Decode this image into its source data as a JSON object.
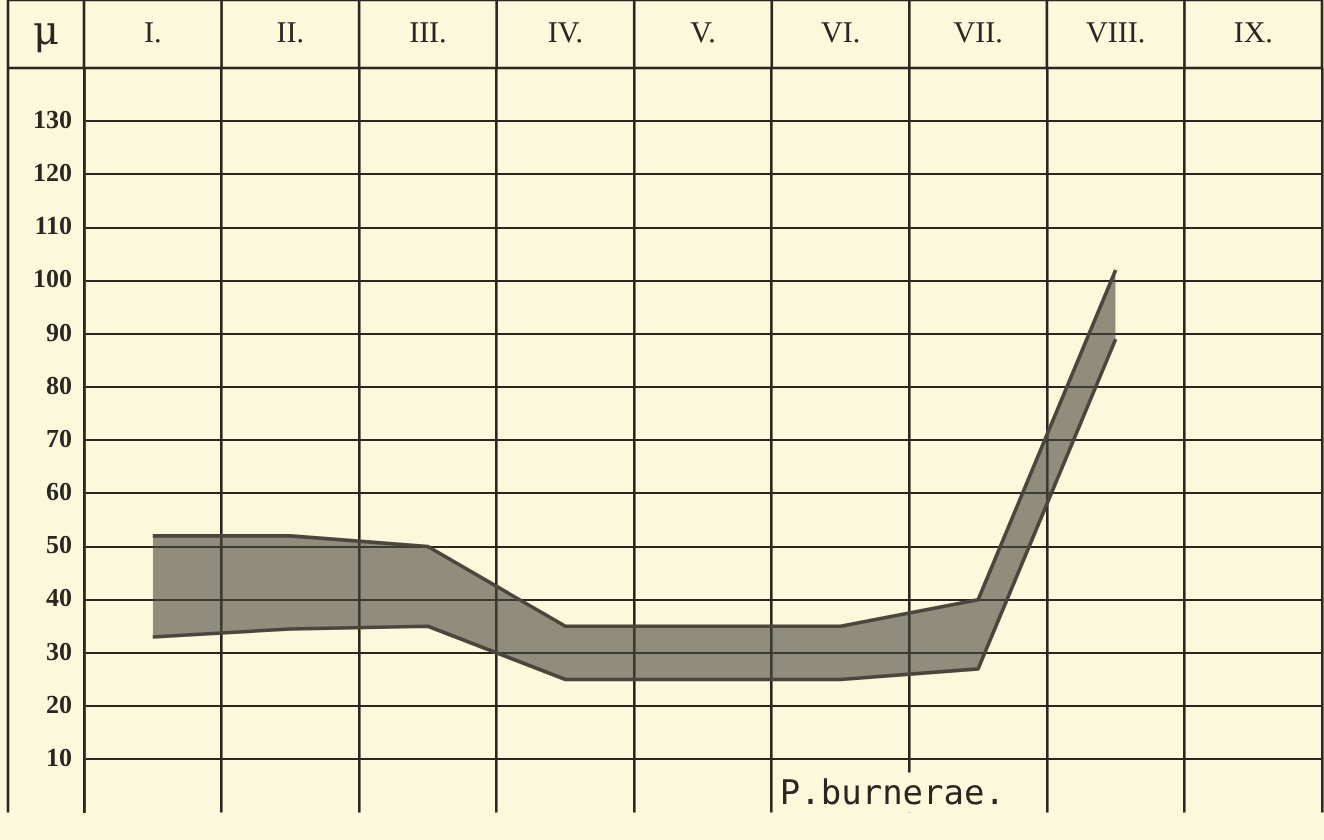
{
  "chart_data": {
    "type": "area",
    "ylabel": "μ",
    "annotations": [
      "P.burnerae."
    ],
    "categories": [
      "I.",
      "II.",
      "III.",
      "IV.",
      "V.",
      "VI.",
      "VII.",
      "VIII.",
      "IX."
    ],
    "ylim": [
      0,
      140
    ],
    "yticks": [
      10,
      20,
      30,
      40,
      50,
      60,
      70,
      80,
      90,
      100,
      110,
      120,
      130,
      {
        "value": 140,
        "label": null
      }
    ],
    "grid": true,
    "series": [
      {
        "color": "#4a463c",
        "values": [
          52,
          52,
          50,
          35,
          35,
          35,
          40,
          102,
          null
        ]
      },
      {
        "type": "line",
        "color": "#4a463c",
        "values": [
          33,
          34.5,
          35,
          25,
          25,
          25,
          27,
          89,
          null
        ]
      }
    ]
  }
}
